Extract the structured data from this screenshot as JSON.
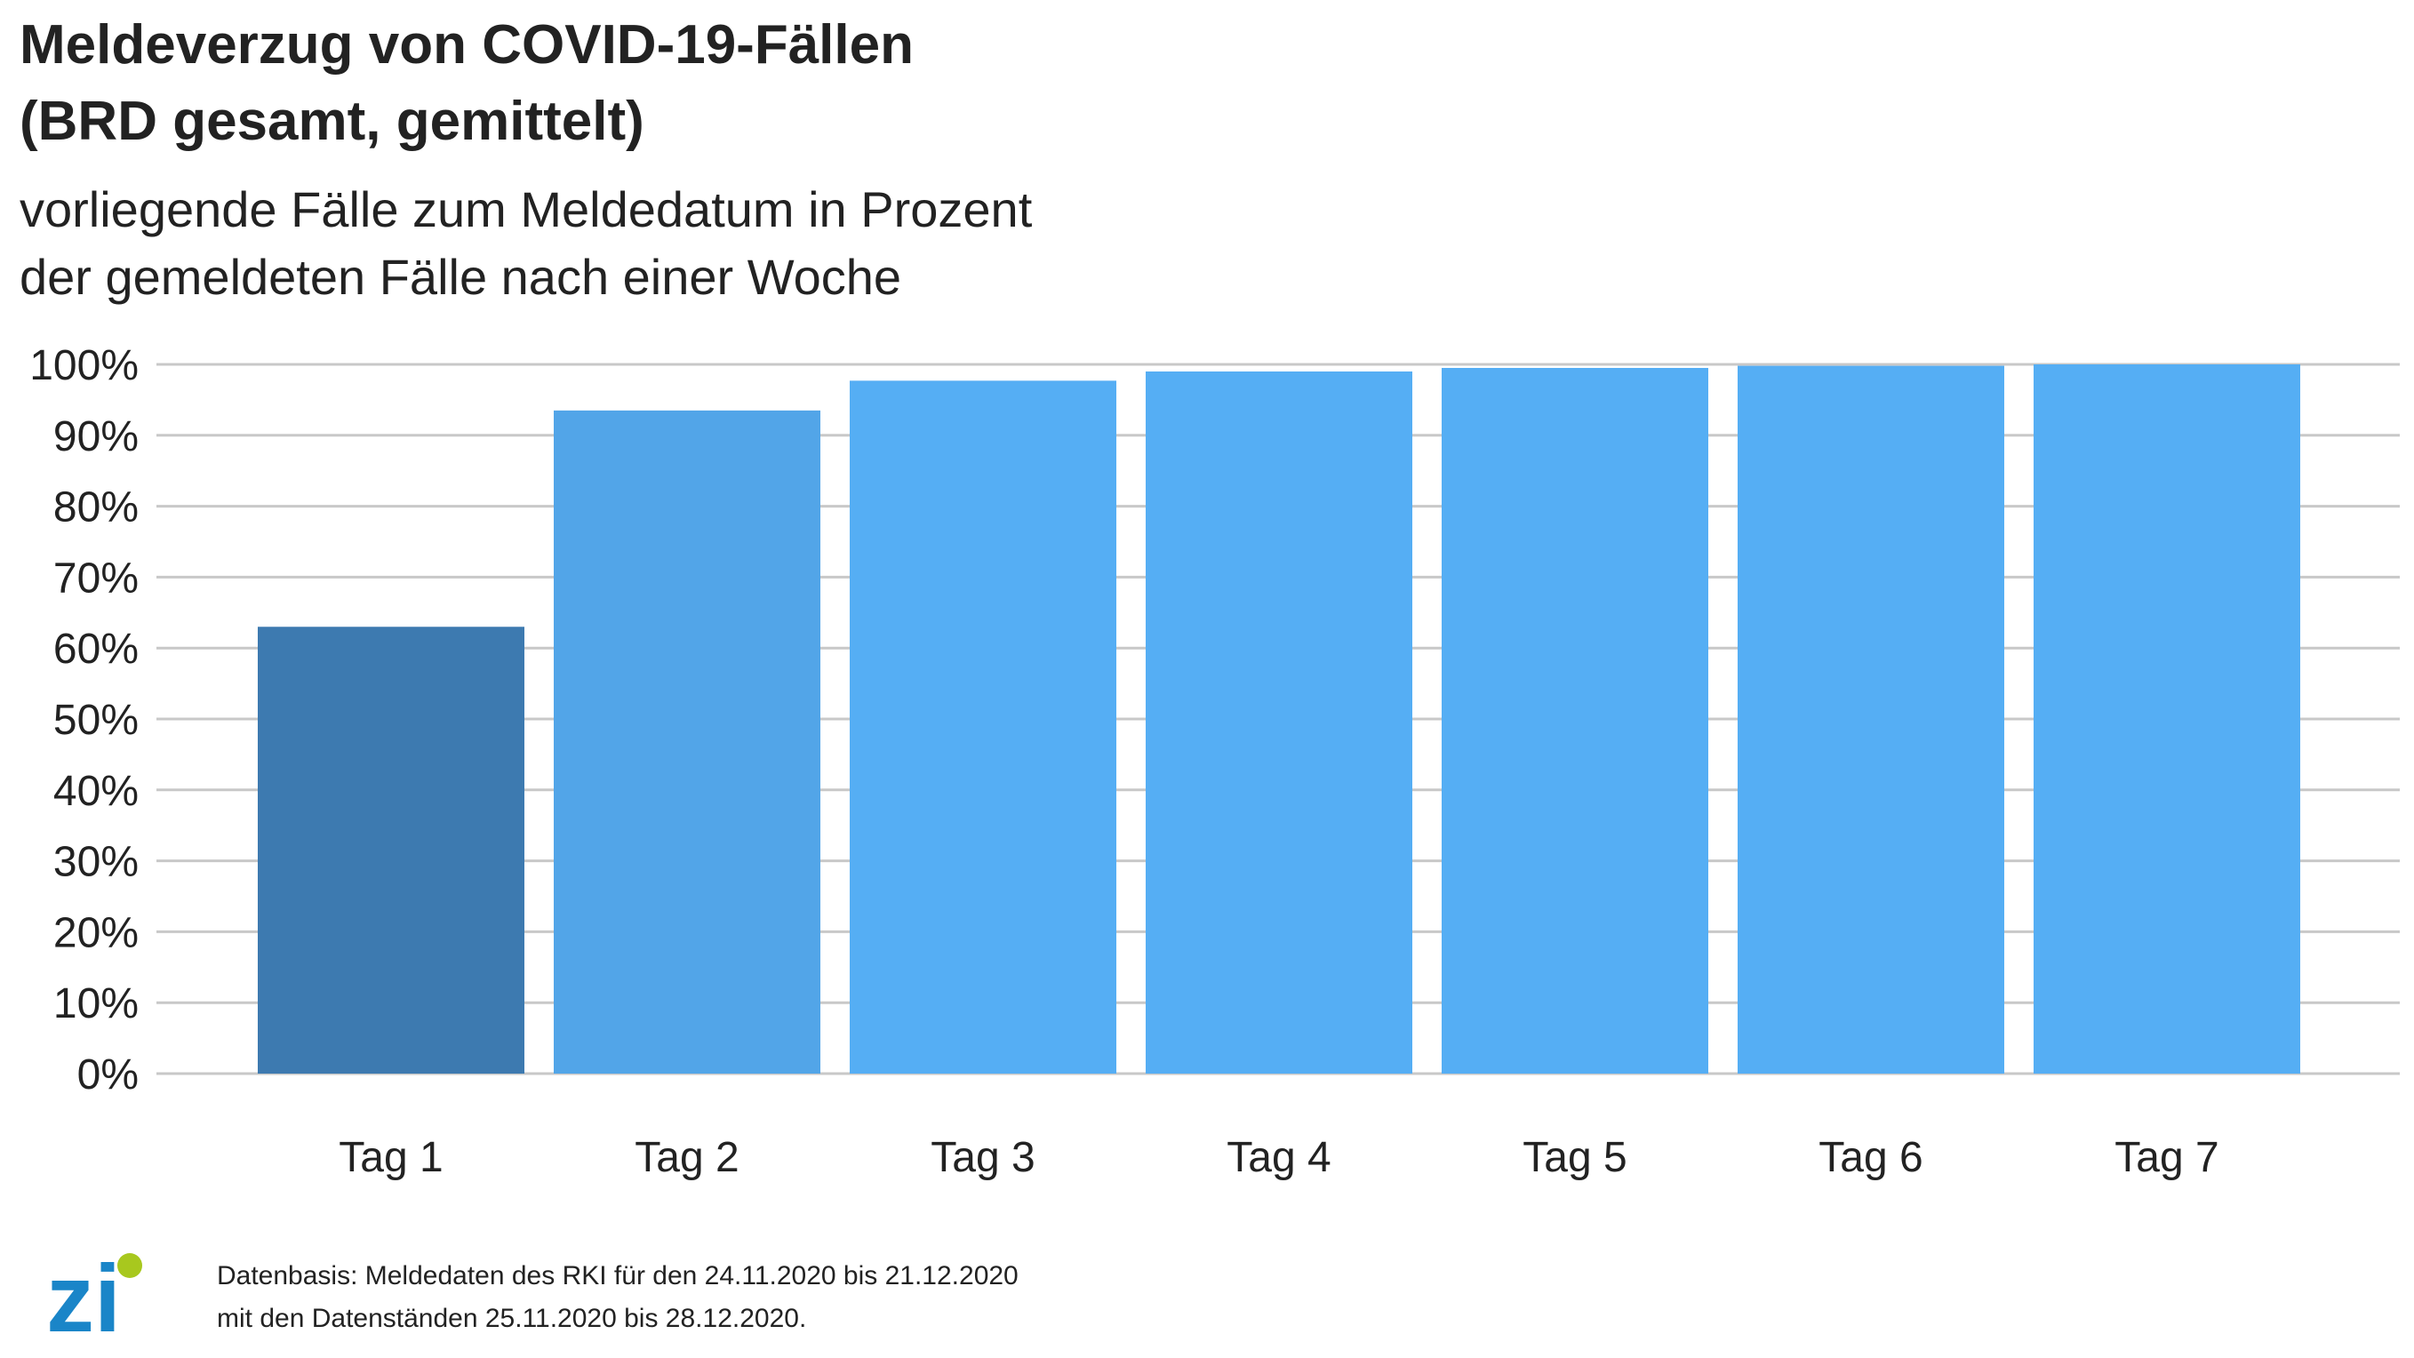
{
  "header": {
    "title_line1": "Meldeverzug von COVID-19-Fällen",
    "title_line2": "(BRD gesamt, gemittelt)",
    "subtitle_line1": "vorliegende Fälle zum Meldedatum in Prozent",
    "subtitle_line2": "der gemeldeten Fälle nach einer Woche"
  },
  "chart_data": {
    "type": "bar",
    "title": "Meldeverzug von COVID-19-Fällen (BRD gesamt, gemittelt)",
    "subtitle": "vorliegende Fälle zum Meldedatum in Prozent der gemeldeten Fälle nach einer Woche",
    "categories": [
      "Tag 1",
      "Tag 2",
      "Tag 3",
      "Tag 4",
      "Tag 5",
      "Tag 6",
      "Tag 7"
    ],
    "values": [
      63,
      93.5,
      97.7,
      99,
      99.5,
      99.8,
      100
    ],
    "bar_colors": [
      "#3d7ab0",
      "#52a5e8",
      "#55aef4",
      "#55aef4",
      "#55aef4",
      "#55aef4",
      "#55aef4"
    ],
    "ylim": [
      0,
      100
    ],
    "yticks": [
      0,
      10,
      20,
      30,
      40,
      50,
      60,
      70,
      80,
      90,
      100
    ],
    "ytick_labels": [
      "0%",
      "10%",
      "20%",
      "30%",
      "40%",
      "50%",
      "60%",
      "70%",
      "80%",
      "90%",
      "100%"
    ],
    "xlabel": "",
    "ylabel": "",
    "grid": true,
    "legend": "none"
  },
  "footer": {
    "logo_text": "zi",
    "source_line1": "Datenbasis: Meldedaten des RKI für den 24.11.2020 bis 21.12.2020",
    "source_line2": "mit den Datenständen 25.11.2020 bis 28.12.2020."
  },
  "colors": {
    "grid": "#c8c8c8",
    "text": "#222222",
    "logo_blue": "#1a85c8",
    "logo_green": "#a8c81e"
  }
}
